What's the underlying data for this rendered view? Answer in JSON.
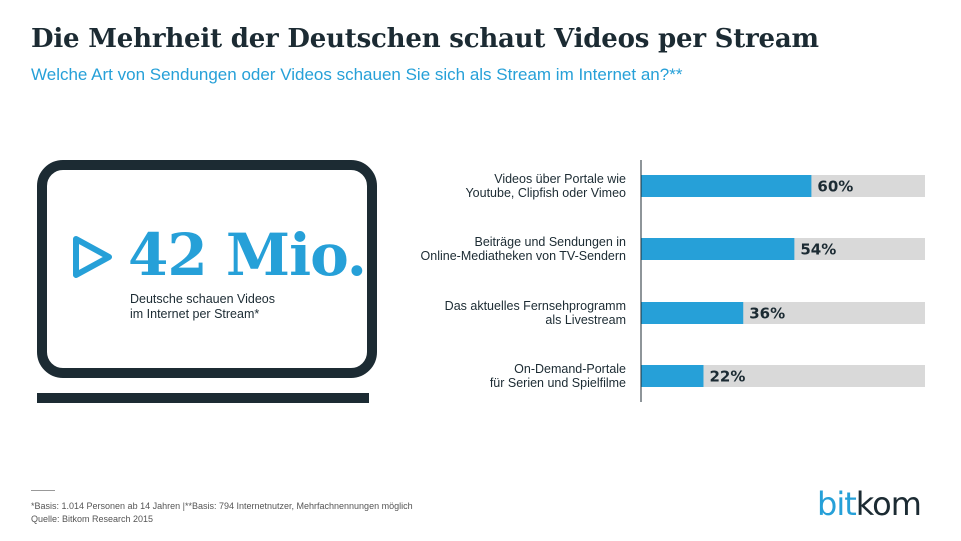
{
  "header": {
    "title": "Die Mehrheit der Deutschen schaut Videos per Stream",
    "subtitle": "Welche Art von Sendungen oder Videos schauen Sie sich als Stream im Internet an?**"
  },
  "highlight": {
    "number": "42 Mio.",
    "caption_lines": [
      "Deutsche schauen Videos",
      "im Internet per Stream*"
    ]
  },
  "chart_data": {
    "type": "bar",
    "orientation": "horizontal",
    "categories": [
      [
        "Videos über Portale wie",
        "Youtube, Clipfish oder Vimeo"
      ],
      [
        "Beiträge und Sendungen in",
        "Online-Mediatheken von TV-Sendern"
      ],
      [
        "Das aktuelles Fernsehprogramm",
        "als Livestream"
      ],
      [
        "On-Demand-Portale",
        "für Serien und Spielfilme"
      ]
    ],
    "values": [
      60,
      54,
      36,
      22
    ],
    "value_labels": [
      "60%",
      "54%",
      "36%",
      "22%"
    ],
    "xlim": [
      0,
      100
    ],
    "bar_color": "#26a0d8",
    "track_color": "#d9d9d9"
  },
  "footer": {
    "notes": [
      "*Basis: 1.014 Personen ab 14 Jahren |**Basis: 794 Internetnutzer, Mehrfachnennungen möglich",
      "Quelle: Bitkom Research 2015"
    ]
  },
  "logo": {
    "part1": "bit",
    "part2": "kom"
  }
}
